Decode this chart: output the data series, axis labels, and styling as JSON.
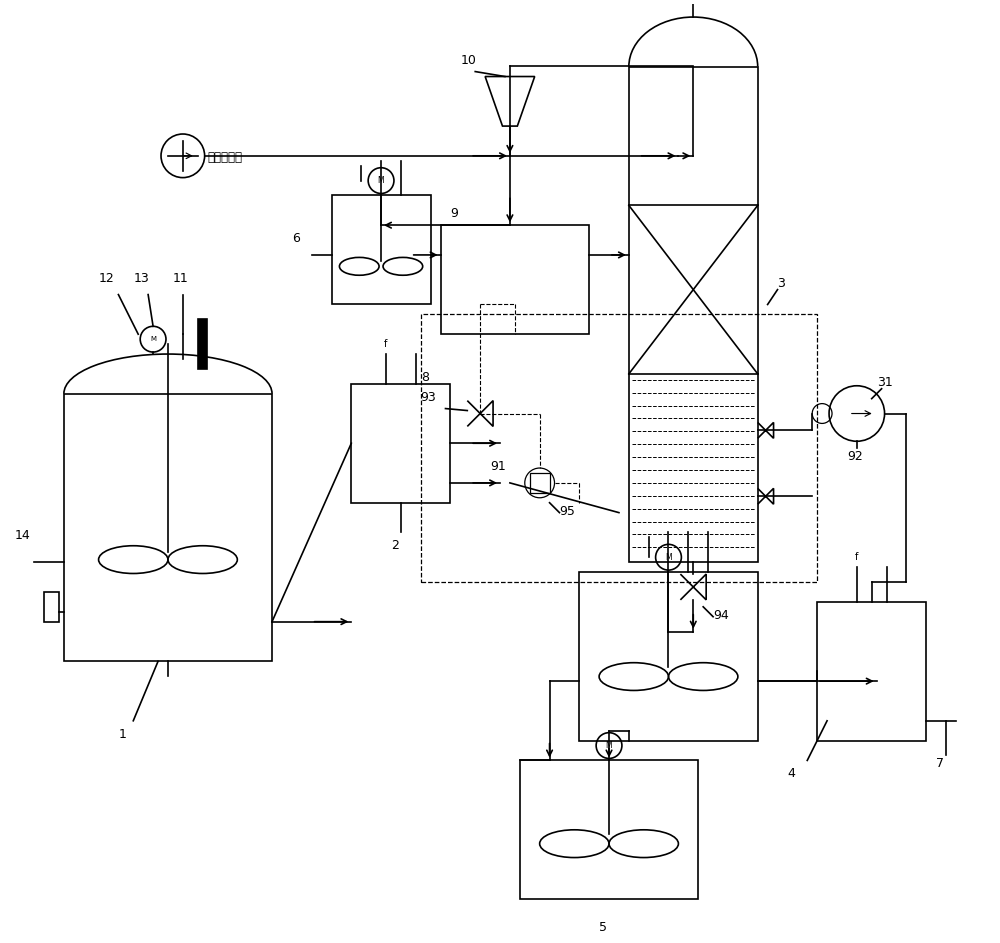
{
  "fig_width": 10.0,
  "fig_height": 9.43,
  "dpi": 100,
  "bg_color": "#ffffff",
  "line_color": "#000000",
  "line_width": 1.2,
  "labels": {
    "water_supply": "自来水管网",
    "1": "1",
    "2": "2",
    "3": "3",
    "4": "4",
    "5": "5",
    "6": "6",
    "7": "7",
    "8": "8",
    "9": "9",
    "10": "10",
    "11": "11",
    "12": "12",
    "13": "13",
    "14": "14",
    "31": "31",
    "91": "91",
    "92": "92",
    "93": "93",
    "94": "94",
    "95": "95"
  }
}
